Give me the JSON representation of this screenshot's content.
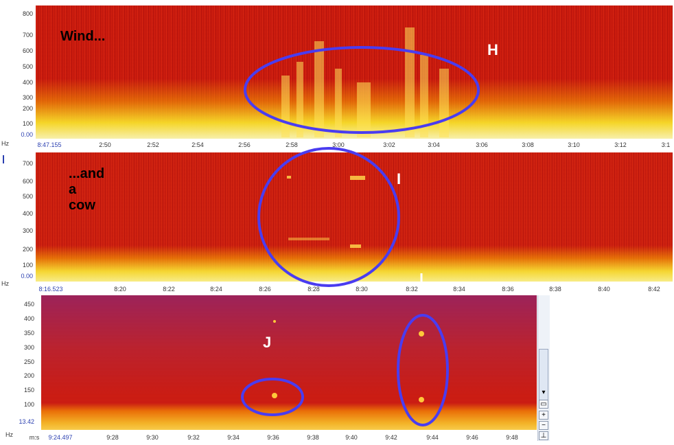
{
  "panel_h": {
    "annotation": "Wind...",
    "letter": "H",
    "y_ticks": [
      "800",
      "700",
      "600",
      "500",
      "400",
      "300",
      "200",
      "100",
      "0.00"
    ],
    "unit": "Hz",
    "x_start": "8:47.155",
    "x_ticks": [
      "2:50",
      "2:52",
      "2:54",
      "2:56",
      "2:58",
      "3:00",
      "3:02",
      "3:04",
      "3:06",
      "3:08",
      "3:10",
      "3:12",
      "3:1"
    ]
  },
  "panel_i": {
    "annotation": "...and a cow",
    "letter": "I",
    "y_ticks": [
      "700",
      "600",
      "500",
      "400",
      "300",
      "200",
      "100",
      "0.00"
    ],
    "unit": "Hz",
    "x_start": "8:16.523",
    "x_ticks": [
      "8:20",
      "8:22",
      "8:24",
      "8:26",
      "8:28",
      "8:30",
      "8:32",
      "8:34",
      "8:36",
      "8:38",
      "8:40",
      "8:42"
    ]
  },
  "panel_j": {
    "letter": "J",
    "y_ticks": [
      "450",
      "400",
      "350",
      "300",
      "250",
      "200",
      "150",
      "100",
      "13.42"
    ],
    "unit": "Hz",
    "x_unit": "m:s",
    "x_start": "9:24.497",
    "x_ticks": [
      "9:28",
      "9:30",
      "9:32",
      "9:34",
      "9:36",
      "9:38",
      "9:40",
      "9:42",
      "9:44",
      "9:46",
      "9:48"
    ],
    "scroll_buttons": {
      "plus": "+",
      "minus": "−",
      "down": "▾",
      "end": "⊥"
    }
  },
  "colors": {
    "ellipse": "#4a3cf0",
    "blue_text": "#2a3fb0"
  }
}
